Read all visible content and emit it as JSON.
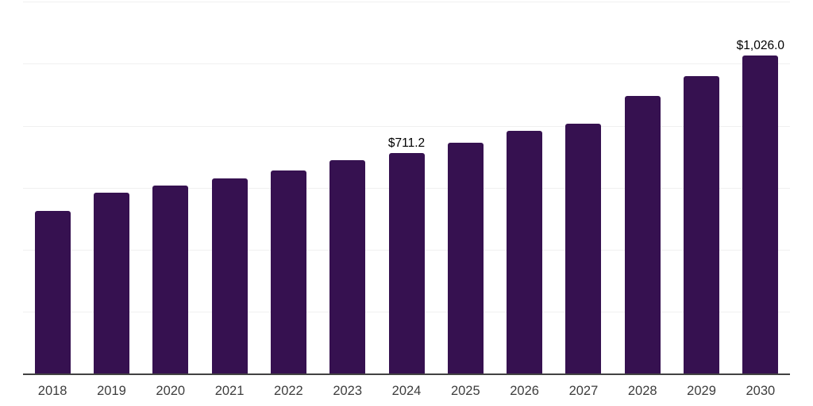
{
  "chart_data": {
    "type": "bar",
    "title": "",
    "xlabel": "",
    "ylabel": "",
    "categories": [
      "2018",
      "2019",
      "2020",
      "2021",
      "2022",
      "2023",
      "2024",
      "2025",
      "2026",
      "2027",
      "2028",
      "2029",
      "2030"
    ],
    "values": [
      526,
      584,
      608,
      631,
      655,
      688,
      711.2,
      746,
      783,
      807,
      896,
      960,
      1026
    ],
    "data_labels": {
      "2024": "$711.2",
      "2030": "$1,026.0"
    },
    "ylim": [
      0,
      1200
    ],
    "y_gridline_step": 200,
    "grid": true,
    "legend": "none",
    "y_axis_tick_labels_shown": false,
    "colors": {
      "bar": "#361150",
      "gridline": "#f0f0f0",
      "axis_line": "#424242",
      "tick_label": "#3d3d3d",
      "data_label": "#000000",
      "background": "#ffffff"
    }
  }
}
